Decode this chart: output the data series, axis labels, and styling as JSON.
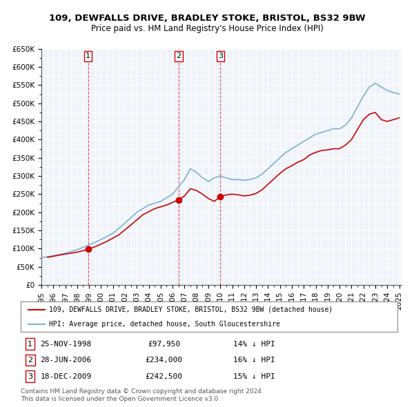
{
  "title1": "109, DEWFALLS DRIVE, BRADLEY STOKE, BRISTOL, BS32 9BW",
  "title2": "Price paid vs. HM Land Registry's House Price Index (HPI)",
  "bg_color": "#f0f4fa",
  "grid_color": "#ffffff",
  "hpi_color": "#7ab0d4",
  "price_color": "#cc0000",
  "sale_marker_color": "#cc0000",
  "sale_points": [
    {
      "date": "1998-11-25",
      "price": 97950,
      "label": "1"
    },
    {
      "date": "2006-06-28",
      "price": 234000,
      "label": "2"
    },
    {
      "date": "2009-12-18",
      "price": 242500,
      "label": "3"
    }
  ],
  "vline_color": "#cc0000",
  "table_rows": [
    {
      "num": "1",
      "date": "25-NOV-1998",
      "price": "£97,950",
      "hpi": "14% ↓ HPI"
    },
    {
      "num": "2",
      "date": "28-JUN-2006",
      "price": "£234,000",
      "hpi": "16% ↓ HPI"
    },
    {
      "num": "3",
      "date": "18-DEC-2009",
      "price": "£242,500",
      "hpi": "15% ↓ HPI"
    }
  ],
  "legend_line1": "109, DEWFALLS DRIVE, BRADLEY STOKE, BRISTOL, BS32 9BW (detached house)",
  "legend_line2": "HPI: Average price, detached house, South Gloucestershire",
  "footnote1": "Contains HM Land Registry data © Crown copyright and database right 2024.",
  "footnote2": "This data is licensed under the Open Government Licence v3.0.",
  "ylim_min": 0,
  "ylim_max": 650000,
  "yticks": [
    0,
    50000,
    100000,
    150000,
    200000,
    250000,
    300000,
    350000,
    400000,
    450000,
    500000,
    550000,
    600000,
    650000
  ],
  "ytick_labels": [
    "£0",
    "£50K",
    "£100K",
    "£150K",
    "£200K",
    "£250K",
    "£300K",
    "£350K",
    "£400K",
    "£450K",
    "£500K",
    "£550K",
    "£600K",
    "£650K"
  ]
}
